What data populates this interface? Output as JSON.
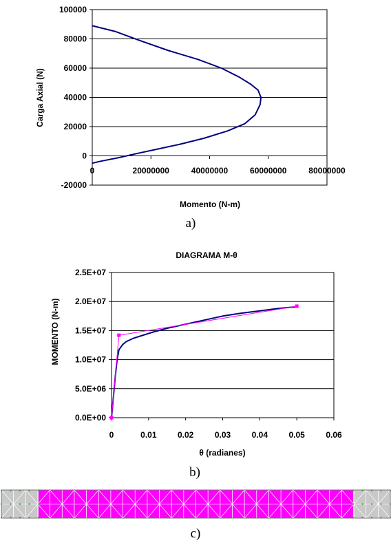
{
  "chart_data": [
    {
      "type": "line",
      "title": "",
      "xlabel": "Momento  (N-m)",
      "ylabel": "Carga Axial (N)",
      "xlim": [
        0,
        80000000
      ],
      "ylim": [
        -20000,
        100000
      ],
      "xticks": [
        "0",
        "20000000",
        "40000000",
        "60000000",
        "80000000"
      ],
      "yticks": [
        "-20000",
        "0",
        "20000",
        "40000",
        "60000",
        "80000",
        "100000"
      ],
      "grid": "horizontal",
      "caption": "a)",
      "series": [
        {
          "color": "#000080",
          "x": [
            0,
            8000000,
            16000000,
            26000000,
            36000000,
            44000000,
            50000000,
            54000000,
            56500000,
            57500000,
            57200000,
            55500000,
            52000000,
            46000000,
            38000000,
            30000000,
            22000000,
            15000000,
            9000000,
            3000000,
            0
          ],
          "y": [
            89000,
            85000,
            79000,
            72000,
            66000,
            60000,
            54000,
            49000,
            45000,
            40000,
            35000,
            28000,
            22000,
            17000,
            12000,
            8000,
            4500,
            1500,
            -1200,
            -3600,
            -5000
          ]
        }
      ]
    },
    {
      "type": "line",
      "title": "DIAGRAMA M-θ",
      "xlabel": "θ (radianes)",
      "ylabel": "MOMENTO (N-m)",
      "xlim": [
        0,
        0.06
      ],
      "ylim": [
        0,
        25000000
      ],
      "xticks": [
        "0",
        "0.01",
        "0.02",
        "0.03",
        "0.04",
        "0.05",
        "0.06"
      ],
      "yticks": [
        "0.0E+00",
        "5.0E+06",
        "1.0E+07",
        "1.5E+07",
        "2.0E+07",
        "2.5E+07"
      ],
      "grid": "horizontal",
      "caption": "b)",
      "series": [
        {
          "color": "#000080",
          "marker": "none",
          "x": [
            0,
            0.001,
            0.0015,
            0.002,
            0.003,
            0.004,
            0.006,
            0.008,
            0.011,
            0.015,
            0.02,
            0.025,
            0.03,
            0.035,
            0.04,
            0.045,
            0.05
          ],
          "y": [
            0,
            7000000,
            10000000,
            11700000,
            12600000,
            13100000,
            13700000,
            14100000,
            14700000,
            15400000,
            16100000,
            16800000,
            17500000,
            18000000,
            18400000,
            18800000,
            19100000
          ]
        },
        {
          "color": "#ff00ff",
          "marker": "square",
          "x": [
            0,
            0.002,
            0.05
          ],
          "y": [
            0,
            14200000,
            19200000
          ]
        }
      ]
    }
  ],
  "mesh_caption": "c)",
  "colors": {
    "mesh_fill": "#ff00ff",
    "mesh_end_fill": "#c8c8c8",
    "mesh_line": "#ffffff"
  }
}
